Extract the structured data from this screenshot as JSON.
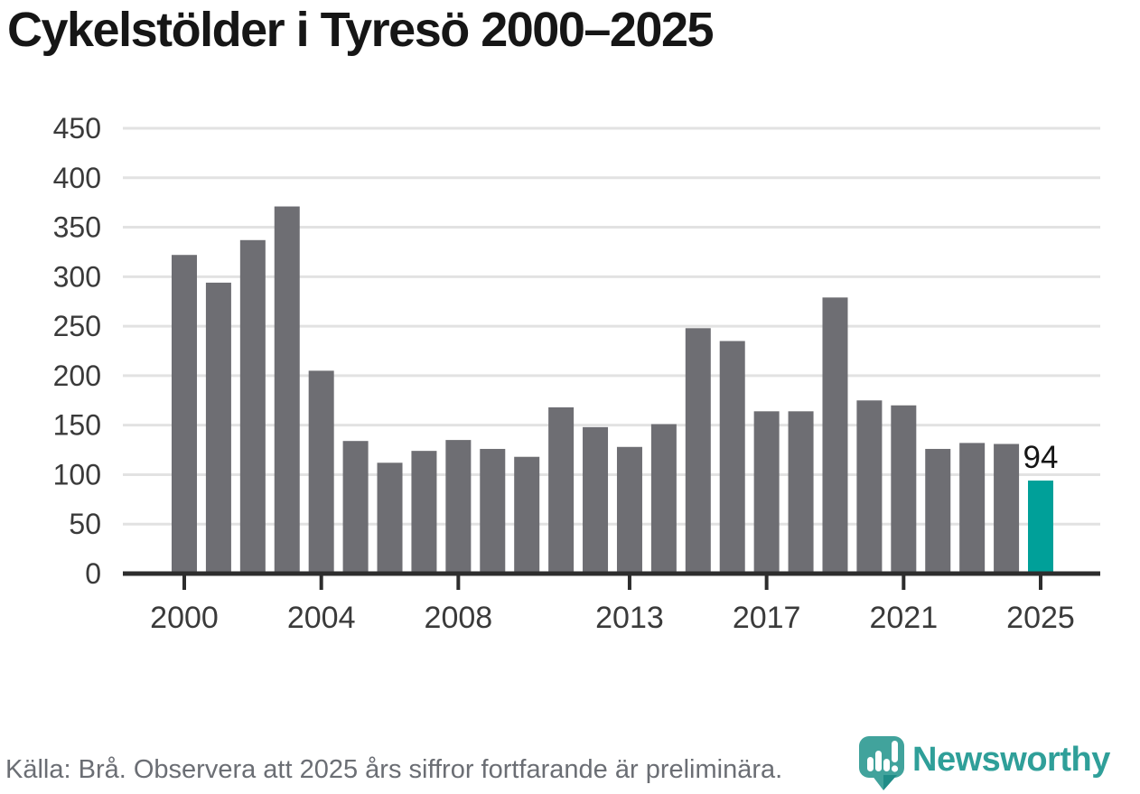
{
  "header": {
    "title": "Cykelstölder i Tyresö 2000–2025"
  },
  "chart_data": {
    "type": "bar",
    "title": "Cykelstölder i Tyresö 2000–2025",
    "x": [
      2000,
      2001,
      2002,
      2003,
      2004,
      2005,
      2006,
      2007,
      2008,
      2009,
      2010,
      2011,
      2012,
      2013,
      2014,
      2015,
      2016,
      2017,
      2018,
      2019,
      2020,
      2021,
      2022,
      2023,
      2024,
      2025
    ],
    "values": [
      322,
      294,
      337,
      371,
      205,
      134,
      112,
      124,
      135,
      126,
      118,
      168,
      148,
      128,
      151,
      248,
      235,
      164,
      164,
      279,
      175,
      170,
      126,
      132,
      131,
      94
    ],
    "xlabel": "",
    "ylabel": "",
    "ylim": [
      0,
      450
    ],
    "yticks": [
      0,
      50,
      100,
      150,
      200,
      250,
      300,
      350,
      400,
      450
    ],
    "xticks": [
      2000,
      2004,
      2008,
      2013,
      2017,
      2021,
      2025
    ],
    "grid": "horizontal",
    "legend": "none",
    "bar_color": "#6e6e73",
    "highlight_year": 2025,
    "highlight_color": "#00a099",
    "grid_color": "#e2e2e2",
    "axis_color": "#2d2d2d",
    "tick_label_color": "#3a3a3a",
    "value_label_color": "#161616",
    "value_labels": {
      "2025": "94"
    }
  },
  "footer": {
    "source_note": "Källa: Brå. Observera att 2025 års siffror fortfarande är preliminära."
  },
  "logo": {
    "name": "Newsworthy",
    "text_color": "#2f9f99",
    "mark_color": "#41a39c",
    "mark_fold_color": "#1f8c87",
    "mark_icon": "speech-bubble-bar-chart-icon"
  }
}
